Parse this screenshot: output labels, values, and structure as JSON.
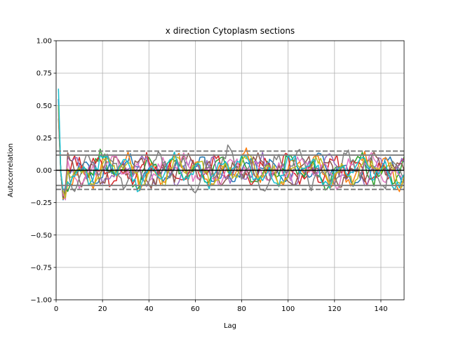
{
  "chart_data": {
    "type": "line",
    "title": "x direction Cytoplasm sections",
    "xlabel": "Lag",
    "ylabel": "Autocorrelation",
    "xlim": [
      0,
      150
    ],
    "ylim": [
      -1.0,
      1.0
    ],
    "x_ticks": [
      0,
      20,
      40,
      60,
      80,
      100,
      120,
      140
    ],
    "x_tick_labels": [
      "0",
      "20",
      "40",
      "60",
      "80",
      "100",
      "120",
      "140"
    ],
    "y_ticks": [
      -1.0,
      -0.75,
      -0.5,
      -0.25,
      0.0,
      0.25,
      0.5,
      0.75,
      1.0
    ],
    "y_tick_labels": [
      "−1.00",
      "−0.75",
      "−0.50",
      "−0.25",
      "0.00",
      "0.25",
      "0.50",
      "0.75",
      "1.00"
    ],
    "grid": true,
    "reference_lines": {
      "zero": 0.0,
      "solid": [
        0.117,
        -0.117
      ],
      "dashed": [
        0.148,
        -0.148
      ]
    },
    "n_lags": 150,
    "series": [
      {
        "color": "#1f77b4",
        "lag1": 0.55,
        "amp": 0.055,
        "phase": 0.3
      },
      {
        "color": "#ff7f0e",
        "lag1": 0.45,
        "amp": 0.075,
        "phase": 1.1
      },
      {
        "color": "#2ca02c",
        "lag1": 0.5,
        "amp": 0.07,
        "phase": 2.0
      },
      {
        "color": "#d62728",
        "lag1": 0.5,
        "amp": 0.06,
        "phase": 2.8
      },
      {
        "color": "#9467bd",
        "lag1": 0.45,
        "amp": 0.06,
        "phase": 3.6
      },
      {
        "color": "#8c564b",
        "lag1": 0.4,
        "amp": 0.065,
        "phase": 4.3
      },
      {
        "color": "#e377c2",
        "lag1": 0.45,
        "amp": 0.06,
        "phase": 5.0
      },
      {
        "color": "#7f7f7f",
        "lag1": 0.5,
        "amp": 0.085,
        "phase": 5.7
      },
      {
        "color": "#bcbd22",
        "lag1": 0.5,
        "amp": 0.06,
        "phase": 0.8
      },
      {
        "color": "#17becf",
        "lag1": 0.63,
        "amp": 0.07,
        "phase": 1.6
      }
    ]
  }
}
